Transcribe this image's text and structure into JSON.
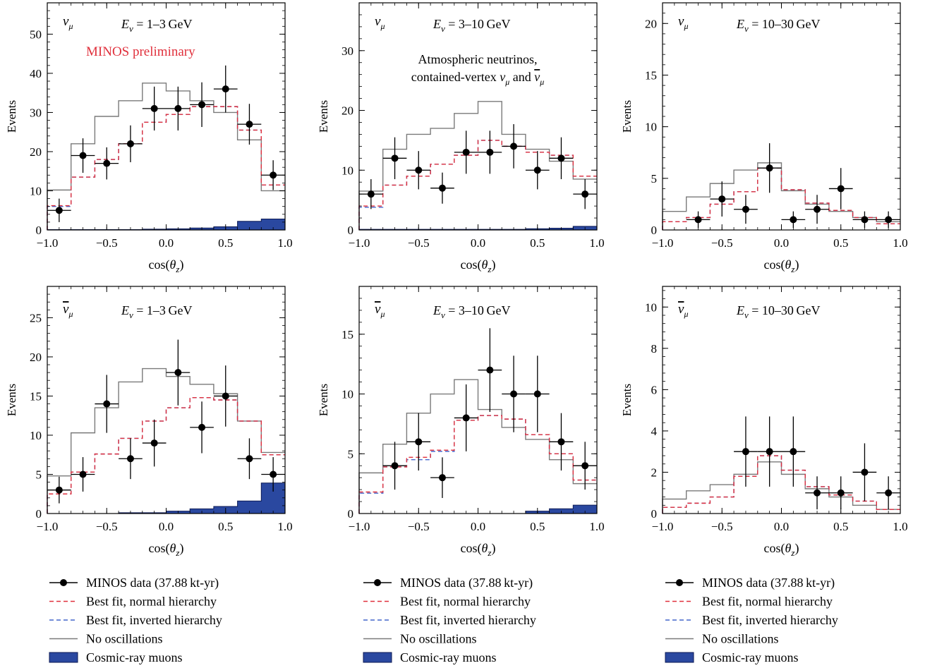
{
  "figure": {
    "legend_labels": [
      "MINOS data (37.88 kt-yr)",
      "Best fit, normal hierarchy",
      "Best fit, inverted hierarchy",
      "No oscillations",
      "Cosmic-ray muons"
    ]
  },
  "colors": {
    "data": "#000000",
    "normal": "#e0303c",
    "inverted": "#4466cc",
    "noosc": "#7a7a7a",
    "cosmic": "#2a48a0",
    "cosmic_edge": "#0c1a55"
  },
  "chart_data": [
    {
      "type": "histogram",
      "particle": "νμ",
      "bar": false,
      "energy": "1–3 GeV",
      "annotation_lines": [
        "MINOS preliminary"
      ],
      "xlabel": "cos(θz)",
      "ylabel": "Events",
      "xlim": [
        -1.0,
        1.0
      ],
      "ylim": [
        0,
        58
      ],
      "xticks": [
        "−1.0",
        "−0.5",
        "0.0",
        "0.5",
        "1.0"
      ],
      "yticks": [
        0,
        10,
        20,
        30,
        40,
        50
      ],
      "bin_edges": [
        -1.0,
        -0.8,
        -0.6,
        -0.4,
        -0.2,
        0.0,
        0.2,
        0.4,
        0.6,
        0.8,
        1.0
      ],
      "no_osc": [
        10.2,
        22.0,
        29.0,
        33.0,
        37.5,
        35.5,
        33.0,
        30.0,
        23.0,
        10.0
      ],
      "normal": [
        6.2,
        13.5,
        18.0,
        22.0,
        27.5,
        29.5,
        31.5,
        31.5,
        25.5,
        11.5
      ],
      "inverted": [
        6.0,
        13.5,
        18.0,
        22.0,
        27.5,
        29.5,
        31.5,
        31.5,
        25.5,
        11.5
      ],
      "cosmic": [
        0.1,
        0.1,
        0.1,
        0.1,
        0.2,
        0.3,
        0.5,
        0.8,
        2.2,
        2.8
      ],
      "data_x": [
        -0.9,
        -0.7,
        -0.5,
        -0.3,
        -0.1,
        0.1,
        0.3,
        0.5,
        0.7,
        0.9
      ],
      "data_y": [
        5,
        19,
        17,
        22,
        31,
        31,
        32,
        36,
        27,
        14
      ],
      "data_err": [
        3,
        4.4,
        4.1,
        4.7,
        5.6,
        5.6,
        5.7,
        6,
        5.2,
        3.8
      ]
    },
    {
      "type": "histogram",
      "particle": "νμ",
      "bar": false,
      "energy": "3–10 GeV",
      "annotation_lines": [
        "Atmospheric neutrinos,",
        "contained-vertex νμ and ν̅μ"
      ],
      "xlabel": "cos(θz)",
      "ylabel": "Events",
      "xlim": [
        -1.0,
        1.0
      ],
      "ylim": [
        0,
        38
      ],
      "xticks": [
        "−1.0",
        "−0.5",
        "0.0",
        "0.5",
        "1.0"
      ],
      "yticks": [
        0,
        10,
        20,
        30
      ],
      "bin_edges": [
        -1.0,
        -0.8,
        -0.6,
        -0.4,
        -0.2,
        0.0,
        0.2,
        0.4,
        0.6,
        0.8,
        1.0
      ],
      "no_osc": [
        6.5,
        13.5,
        16.0,
        17.0,
        19.5,
        21.5,
        16.0,
        13.5,
        11.5,
        8.5
      ],
      "normal": [
        4.0,
        7.5,
        9.0,
        11.0,
        12.5,
        15.0,
        14.0,
        13.0,
        12.5,
        9.0
      ],
      "inverted": [
        3.8,
        7.5,
        9.0,
        11.0,
        12.5,
        15.0,
        14.0,
        13.0,
        12.5,
        9.0
      ],
      "cosmic": [
        0.1,
        0.1,
        0.1,
        0.1,
        0.1,
        0.1,
        0.1,
        0.2,
        0.3,
        0.6
      ],
      "data_x": [
        -0.9,
        -0.7,
        -0.5,
        -0.3,
        -0.1,
        0.1,
        0.3,
        0.5,
        0.7,
        0.9
      ],
      "data_y": [
        6,
        12,
        10,
        7,
        13,
        13,
        14,
        10,
        12,
        6
      ],
      "data_err": [
        2.5,
        3.5,
        3.2,
        2.6,
        3.6,
        3.6,
        3.7,
        3.2,
        3.5,
        2.5
      ]
    },
    {
      "type": "histogram",
      "particle": "νμ",
      "bar": false,
      "energy": "10–30 GeV",
      "annotation_lines": [],
      "xlabel": "cos(θz)",
      "ylabel": "Events",
      "xlim": [
        -1.0,
        1.0
      ],
      "ylim": [
        0,
        22
      ],
      "xticks": [
        "−1.0",
        "−0.5",
        "0.0",
        "0.5",
        "1.0"
      ],
      "yticks": [
        0,
        5,
        10,
        15,
        20
      ],
      "bin_edges": [
        -1.0,
        -0.8,
        -0.6,
        -0.4,
        -0.2,
        0.0,
        0.2,
        0.4,
        0.6,
        0.8,
        1.0
      ],
      "no_osc": [
        1.8,
        3.2,
        4.5,
        5.8,
        6.5,
        3.8,
        2.5,
        1.8,
        1.2,
        0.8
      ],
      "normal": [
        0.8,
        1.2,
        2.5,
        3.7,
        6.0,
        3.9,
        2.6,
        1.9,
        1.2,
        0.6
      ],
      "inverted": [
        0.8,
        1.2,
        2.5,
        3.7,
        6.0,
        3.9,
        2.6,
        1.9,
        1.2,
        0.6
      ],
      "cosmic": [
        0.0,
        0.0,
        0.0,
        0.0,
        0.0,
        0.0,
        0.0,
        0.0,
        0.0,
        0.0
      ],
      "data_x": [
        -0.7,
        -0.5,
        -0.3,
        -0.1,
        0.1,
        0.3,
        0.5,
        0.7,
        0.9
      ],
      "data_y": [
        1,
        3,
        2,
        6,
        1,
        2,
        4,
        1,
        1
      ],
      "data_err": [
        0.8,
        1.7,
        1.4,
        2.4,
        0.8,
        1.4,
        2,
        0.8,
        0.8
      ]
    },
    {
      "type": "histogram",
      "particle": "νμ",
      "bar": true,
      "energy": "1–3 GeV",
      "annotation_lines": [],
      "xlabel": "cos(θz)",
      "ylabel": "Events",
      "xlim": [
        -1.0,
        1.0
      ],
      "ylim": [
        0,
        29
      ],
      "xticks": [
        "−1.0",
        "−0.5",
        "0.0",
        "0.5",
        "1.0"
      ],
      "yticks": [
        0,
        5,
        10,
        15,
        20,
        25
      ],
      "bin_edges": [
        -1.0,
        -0.8,
        -0.6,
        -0.4,
        -0.2,
        0.0,
        0.2,
        0.4,
        0.6,
        0.8,
        1.0
      ],
      "no_osc": [
        4.8,
        10.3,
        13.5,
        16.8,
        18.5,
        17.5,
        16.5,
        15.3,
        11.8,
        7.8
      ],
      "normal": [
        2.5,
        5.3,
        7.6,
        9.6,
        11.8,
        13.5,
        14.8,
        14.5,
        11.8,
        7.5
      ],
      "inverted": [
        2.5,
        5.3,
        7.6,
        9.6,
        11.8,
        13.5,
        14.8,
        14.5,
        11.8,
        7.5
      ],
      "cosmic": [
        0.0,
        0.0,
        0.0,
        0.1,
        0.1,
        0.3,
        0.6,
        0.9,
        1.6,
        3.9
      ],
      "data_x": [
        -0.9,
        -0.7,
        -0.5,
        -0.3,
        -0.1,
        0.1,
        0.3,
        0.5,
        0.7,
        0.9
      ],
      "data_y": [
        3,
        5,
        14,
        7,
        9,
        18,
        11,
        15,
        7,
        5
      ],
      "data_err": [
        1.7,
        2.2,
        3.7,
        2.6,
        3,
        4.2,
        3.3,
        3.9,
        2.6,
        2.2
      ]
    },
    {
      "type": "histogram",
      "particle": "νμ",
      "bar": true,
      "energy": "3–10 GeV",
      "annotation_lines": [],
      "xlabel": "cos(θz)",
      "ylabel": "Events",
      "xlim": [
        -1.0,
        1.0
      ],
      "ylim": [
        0,
        19
      ],
      "xticks": [
        "−1.0",
        "−0.5",
        "0.0",
        "0.5",
        "1.0"
      ],
      "yticks": [
        0,
        5,
        10,
        15
      ],
      "bin_edges": [
        -1.0,
        -0.8,
        -0.6,
        -0.4,
        -0.2,
        0.0,
        0.2,
        0.4,
        0.6,
        0.8,
        1.0
      ],
      "no_osc": [
        3.4,
        5.8,
        8.4,
        10.0,
        11.2,
        8.7,
        7.2,
        6.2,
        4.5,
        2.5
      ],
      "normal": [
        1.8,
        3.9,
        4.7,
        5.3,
        7.8,
        8.2,
        7.9,
        6.6,
        5.0,
        2.8
      ],
      "inverted": [
        1.7,
        3.9,
        4.5,
        5.2,
        7.8,
        8.2,
        7.9,
        6.6,
        5.0,
        2.8
      ],
      "cosmic": [
        0.0,
        0.0,
        0.0,
        0.0,
        0.0,
        0.0,
        0.0,
        0.2,
        0.4,
        0.7
      ],
      "data_x": [
        -0.7,
        -0.5,
        -0.3,
        -0.1,
        0.1,
        0.3,
        0.5,
        0.7,
        0.9
      ],
      "data_y": [
        4,
        6,
        3,
        8,
        12,
        10,
        10,
        6,
        4
      ],
      "data_err": [
        2,
        2.4,
        1.7,
        2.8,
        3.5,
        3.2,
        3.2,
        2.4,
        2
      ]
    },
    {
      "type": "histogram",
      "particle": "νμ",
      "bar": true,
      "energy": "10–30 GeV",
      "annotation_lines": [],
      "xlabel": "cos(θz)",
      "ylabel": "Events",
      "xlim": [
        -1.0,
        1.0
      ],
      "ylim": [
        0,
        11
      ],
      "xticks": [
        "−1.0",
        "−0.5",
        "0.0",
        "0.5",
        "1.0"
      ],
      "yticks": [
        0,
        2,
        4,
        6,
        8,
        10
      ],
      "bin_edges": [
        -1.0,
        -0.8,
        -0.6,
        -0.4,
        -0.2,
        0.0,
        0.2,
        0.4,
        0.6,
        0.8,
        1.0
      ],
      "no_osc": [
        0.7,
        1.1,
        1.4,
        1.9,
        2.5,
        1.9,
        1.2,
        0.8,
        0.4,
        0.2
      ],
      "normal": [
        0.3,
        0.5,
        0.8,
        1.8,
        2.8,
        2.1,
        1.3,
        0.9,
        0.6,
        0.2
      ],
      "inverted": [
        0.3,
        0.5,
        0.8,
        1.8,
        2.8,
        2.1,
        1.3,
        0.9,
        0.6,
        0.2
      ],
      "cosmic": [
        0.0,
        0.0,
        0.0,
        0.0,
        0.0,
        0.0,
        0.0,
        0.0,
        0.0,
        0.0
      ],
      "data_x": [
        -0.3,
        -0.1,
        0.1,
        0.3,
        0.5,
        0.7,
        0.9
      ],
      "data_y": [
        3,
        3,
        3,
        1,
        1,
        2,
        1
      ],
      "data_err": [
        1.7,
        1.7,
        1.7,
        0.8,
        0.8,
        1.4,
        0.8
      ]
    }
  ]
}
